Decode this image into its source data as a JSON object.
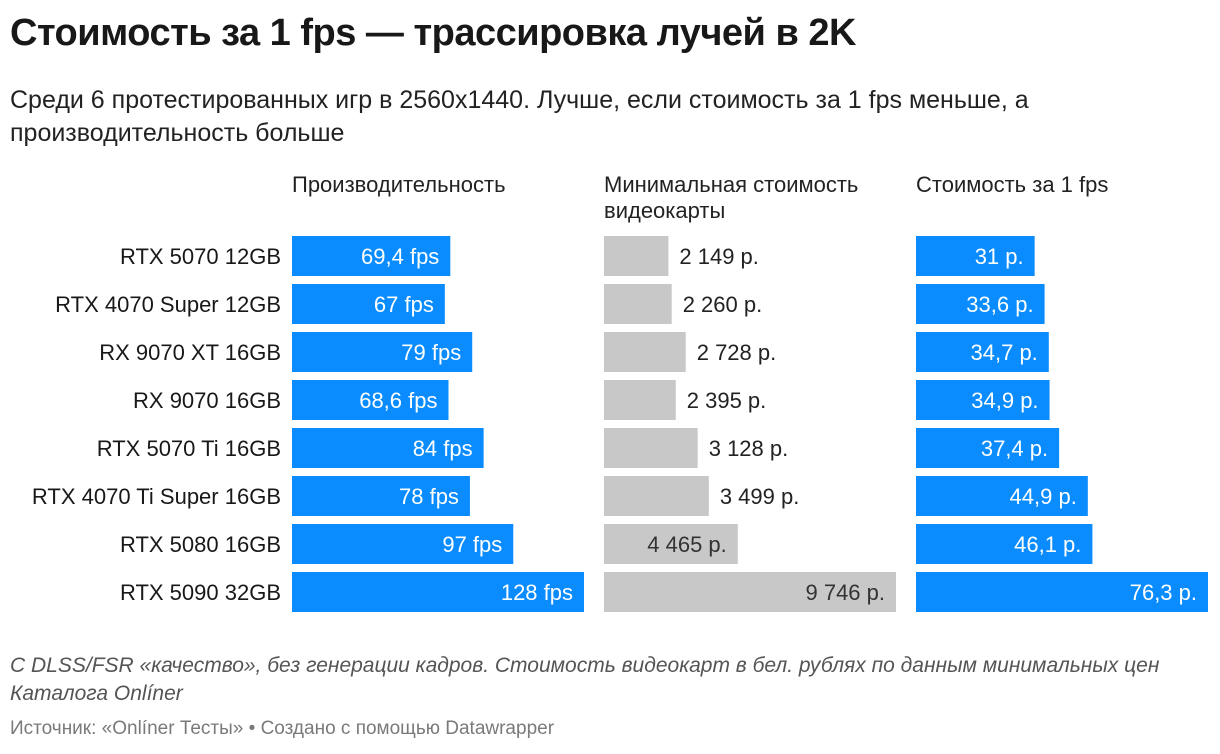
{
  "title": "Стоимость за 1 fps — трассировка лучей в 2K",
  "subtitle": "Среди 6 протестированных игр в 2560x1440. Лучше, если стоимость за 1 fps меньше, а производительность больше",
  "notes": "С DLSS/FSR «качество», без генерации кадров. Стоимость видеокарт в бел. рублях по данным минимальных цен Каталога Onlíner",
  "source": "Источник: «Onlíner Тесты» • Создано с помощью Datawrapper",
  "colors": {
    "blue": "#0a8cff",
    "gray": "#c8c8c8"
  },
  "chart_data": {
    "type": "bar",
    "orientation": "horizontal",
    "categories": [
      "RTX 5070 12GB",
      "RTX 4070 Super 12GB",
      "RX 9070 XT 16GB",
      "RX 9070 16GB",
      "RTX 5070 Ti 16GB",
      "RTX 4070 Ti Super 16GB",
      "RTX 5080 16GB",
      "RTX 5090 32GB"
    ],
    "series": [
      {
        "name": "Производительность",
        "values": [
          69.4,
          67,
          79,
          68.6,
          84,
          78,
          97,
          128
        ],
        "labels": [
          "69,4 fps",
          "67 fps",
          "79 fps",
          "68,6 fps",
          "84 fps",
          "78 fps",
          "97 fps",
          "128 fps"
        ],
        "color": "#0a8cff",
        "max": 128
      },
      {
        "name": "Минимальная стоимость видеокарты",
        "values": [
          2149,
          2260,
          2728,
          2395,
          3128,
          3499,
          4465,
          9746
        ],
        "labels": [
          "2 149 р.",
          "2 260 р.",
          "2 728 р.",
          "2 395 р.",
          "3 128 р.",
          "3 499 р.",
          "4 465 р.",
          "9 746 р."
        ],
        "color": "#c8c8c8",
        "max": 9746
      },
      {
        "name": "Стоимость за 1 fps",
        "values": [
          31,
          33.6,
          34.7,
          34.9,
          37.4,
          44.9,
          46.1,
          76.3
        ],
        "labels": [
          "31 р.",
          "33,6 р.",
          "34,7 р.",
          "34,9 р.",
          "37,4 р.",
          "44,9 р.",
          "46,1 р.",
          "76,3 р."
        ],
        "color": "#0a8cff",
        "max": 76.3
      }
    ]
  }
}
